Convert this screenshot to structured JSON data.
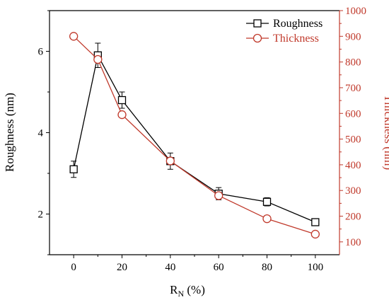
{
  "chart_data": {
    "type": "line",
    "x": [
      0,
      10,
      20,
      40,
      60,
      80,
      100
    ],
    "x_ticks": [
      0,
      20,
      40,
      60,
      80,
      100
    ],
    "xlim": [
      -10,
      110
    ],
    "xlabel": "R_N (%)",
    "xlabel_main": "R",
    "xlabel_sub": "N",
    "xlabel_tail": " (%)",
    "y_left": {
      "label": "Roughness (nm)",
      "lim": [
        1.0,
        7.0
      ],
      "ticks": [
        2,
        4,
        6
      ],
      "color": "#000000"
    },
    "y_right": {
      "label": "Thickness (nm)",
      "lim": [
        50,
        1000
      ],
      "ticks": [
        100,
        200,
        300,
        400,
        500,
        600,
        700,
        800,
        900,
        1000
      ],
      "color": "#c0392b"
    },
    "series": [
      {
        "name": "Roughness",
        "axis": "left",
        "marker": "square",
        "color": "#000000",
        "values": [
          3.1,
          5.9,
          4.8,
          3.3,
          2.5,
          2.3,
          1.8
        ],
        "error": [
          0.2,
          0.3,
          0.2,
          0.2,
          0.15,
          0.1,
          0.05
        ]
      },
      {
        "name": "Thickness",
        "axis": "right",
        "marker": "circle",
        "color": "#c0392b",
        "values": [
          900,
          810,
          595,
          415,
          280,
          190,
          130
        ]
      }
    ],
    "legend": "top-right",
    "grid": false
  }
}
